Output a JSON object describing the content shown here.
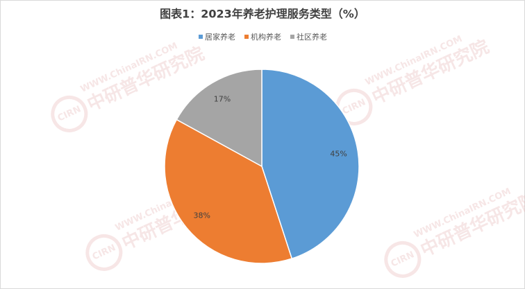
{
  "chart_data": {
    "type": "pie",
    "title": "图表1：2023年养老护理服务类型（%）",
    "categories": [
      "居家养老",
      "机构养老",
      "社区养老"
    ],
    "values": [
      45,
      38,
      17
    ],
    "value_labels": [
      "45%",
      "38%",
      "17%"
    ],
    "colors": [
      "#5b9bd5",
      "#ed7d31",
      "#a5a5a5"
    ],
    "legend": "top"
  },
  "watermark": {
    "site": "WWW.ChinaIRN.COM",
    "name": "中研普华研究院",
    "logo": "CIRN"
  }
}
